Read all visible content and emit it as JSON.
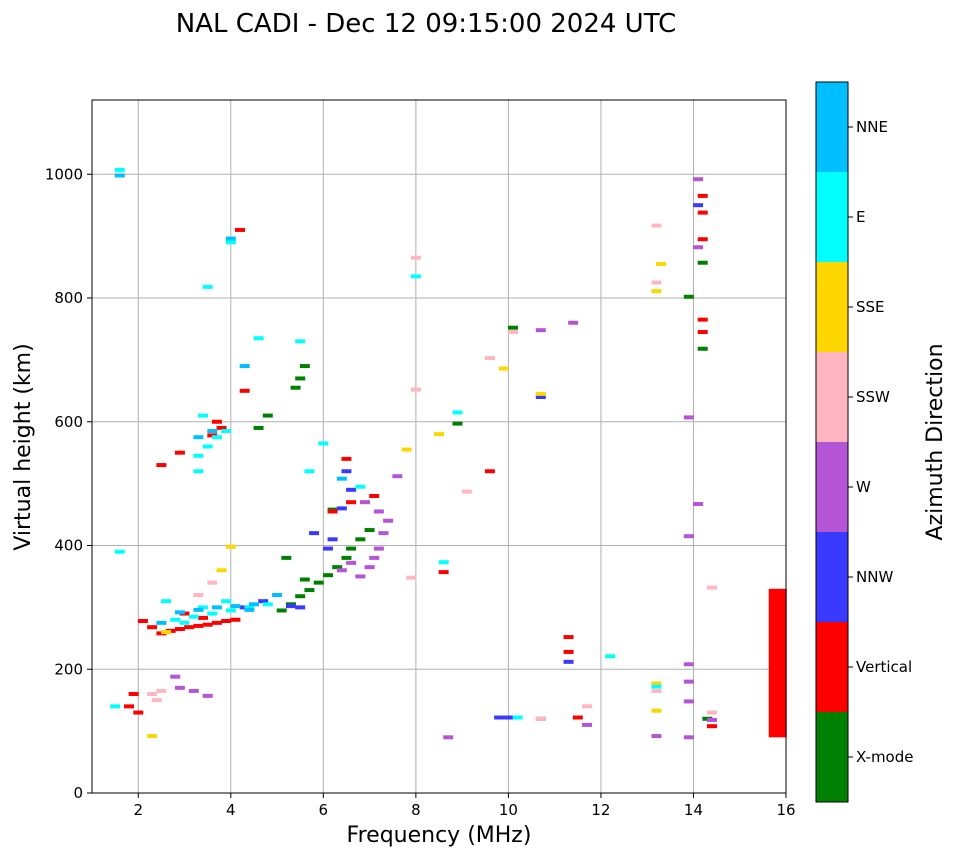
{
  "chart_data": {
    "type": "scatter",
    "title": "NAL CADI - Dec 12 09:15:00 2024 UTC",
    "xlabel": "Frequency (MHz)",
    "ylabel": "Virtual height (km)",
    "xlim": [
      1,
      16
    ],
    "ylim": [
      0,
      1120
    ],
    "xticks": [
      2,
      4,
      6,
      8,
      10,
      12,
      14,
      16
    ],
    "yticks": [
      0,
      200,
      400,
      600,
      800,
      1000
    ],
    "grid": true,
    "colorbar": {
      "label": "Azimuth Direction",
      "categories": [
        "X-mode",
        "Vertical",
        "NNW",
        "W",
        "SSW",
        "SSE",
        "E",
        "NNE"
      ],
      "colors": [
        "#008000",
        "#ff0000",
        "#3a3aff",
        "#b455d6",
        "#ffb6c1",
        "#ffd700",
        "#00ffff",
        "#00bfff"
      ]
    },
    "series": [
      {
        "name": "X-mode",
        "points": [
          [
            5.1,
            295
          ],
          [
            5.3,
            305
          ],
          [
            5.5,
            318
          ],
          [
            5.7,
            328
          ],
          [
            5.9,
            340
          ],
          [
            6.1,
            352
          ],
          [
            6.3,
            365
          ],
          [
            6.5,
            380
          ],
          [
            6.6,
            395
          ],
          [
            6.8,
            410
          ],
          [
            7.0,
            425
          ],
          [
            5.6,
            690
          ],
          [
            5.5,
            670
          ],
          [
            5.4,
            655
          ],
          [
            4.8,
            610
          ],
          [
            4.6,
            590
          ],
          [
            10.1,
            752
          ],
          [
            8.9,
            597
          ],
          [
            13.9,
            802
          ],
          [
            14.2,
            857
          ],
          [
            14.2,
            718
          ],
          [
            14.3,
            120
          ],
          [
            5.2,
            380
          ],
          [
            5.6,
            345
          ],
          [
            6.2,
            458
          ]
        ]
      },
      {
        "name": "Vertical",
        "points": [
          [
            2.5,
            258
          ],
          [
            2.7,
            262
          ],
          [
            2.9,
            265
          ],
          [
            3.1,
            268
          ],
          [
            3.3,
            270
          ],
          [
            3.5,
            272
          ],
          [
            3.7,
            275
          ],
          [
            3.9,
            278
          ],
          [
            4.1,
            280
          ],
          [
            2.1,
            278
          ],
          [
            2.3,
            268
          ],
          [
            3.0,
            290
          ],
          [
            3.4,
            283
          ],
          [
            3.8,
            590
          ],
          [
            3.6,
            578
          ],
          [
            3.7,
            600
          ],
          [
            2.5,
            530
          ],
          [
            2.9,
            550
          ],
          [
            4.2,
            910
          ],
          [
            4.3,
            650
          ],
          [
            6.5,
            540
          ],
          [
            6.2,
            455
          ],
          [
            14.2,
            965
          ],
          [
            14.2,
            938
          ],
          [
            14.2,
            895
          ],
          [
            14.2,
            765
          ],
          [
            14.2,
            745
          ],
          [
            14.4,
            108
          ],
          [
            11.3,
            252
          ],
          [
            11.3,
            228
          ],
          [
            11.5,
            122
          ],
          [
            9.6,
            520
          ],
          [
            8.6,
            357
          ],
          [
            1.8,
            140
          ],
          [
            1.9,
            160
          ],
          [
            2.0,
            130
          ],
          [
            6.6,
            470
          ],
          [
            7.1,
            480
          ]
        ]
      },
      {
        "name": "NNW",
        "points": [
          [
            6.6,
            490
          ],
          [
            6.4,
            460
          ],
          [
            5.8,
            420
          ],
          [
            6.2,
            410
          ],
          [
            4.7,
            310
          ],
          [
            4.3,
            300
          ],
          [
            9.8,
            122
          ],
          [
            10.0,
            122
          ],
          [
            11.3,
            212
          ],
          [
            14.1,
            950
          ],
          [
            10.7,
            640
          ],
          [
            6.5,
            520
          ],
          [
            6.1,
            395
          ],
          [
            5.5,
            300
          ],
          [
            5.3,
            302
          ]
        ]
      },
      {
        "name": "W",
        "points": [
          [
            6.8,
            350
          ],
          [
            7.0,
            365
          ],
          [
            7.1,
            380
          ],
          [
            7.2,
            395
          ],
          [
            7.3,
            420
          ],
          [
            7.4,
            440
          ],
          [
            6.9,
            470
          ],
          [
            7.2,
            455
          ],
          [
            6.4,
            360
          ],
          [
            6.6,
            372
          ],
          [
            7.6,
            512
          ],
          [
            8.7,
            90
          ],
          [
            14.1,
            992
          ],
          [
            14.1,
            882
          ],
          [
            13.9,
            607
          ],
          [
            14.1,
            467
          ],
          [
            13.9,
            415
          ],
          [
            13.9,
            208
          ],
          [
            13.9,
            180
          ],
          [
            13.9,
            148
          ],
          [
            13.9,
            90
          ],
          [
            13.2,
            92
          ],
          [
            14.4,
            118
          ],
          [
            11.7,
            110
          ],
          [
            10.7,
            748
          ],
          [
            11.4,
            760
          ],
          [
            10.7,
            120
          ],
          [
            2.9,
            170
          ],
          [
            3.2,
            165
          ],
          [
            3.5,
            157
          ],
          [
            2.8,
            188
          ]
        ]
      },
      {
        "name": "SSW",
        "points": [
          [
            2.3,
            160
          ],
          [
            2.5,
            165
          ],
          [
            2.4,
            150
          ],
          [
            13.2,
            917
          ],
          [
            13.2,
            825
          ],
          [
            14.4,
            332
          ],
          [
            14.4,
            130
          ],
          [
            13.2,
            165
          ],
          [
            8.0,
            865
          ],
          [
            8.0,
            652
          ],
          [
            7.9,
            348
          ],
          [
            9.1,
            487
          ],
          [
            10.1,
            745
          ],
          [
            10.7,
            120
          ],
          [
            9.6,
            703
          ],
          [
            11.7,
            140
          ],
          [
            3.6,
            340
          ],
          [
            3.3,
            320
          ],
          [
            15.8,
            325
          ],
          [
            15.8,
            290
          ],
          [
            15.8,
            260
          ],
          [
            15.8,
            235
          ]
        ]
      },
      {
        "name": "SSE",
        "points": [
          [
            13.3,
            855
          ],
          [
            13.2,
            811
          ],
          [
            13.2,
            177
          ],
          [
            13.2,
            133
          ],
          [
            9.9,
            686
          ],
          [
            8.5,
            580
          ],
          [
            7.8,
            555
          ],
          [
            10.7,
            645
          ],
          [
            3.8,
            360
          ],
          [
            4.0,
            398
          ],
          [
            2.3,
            92
          ],
          [
            2.6,
            260
          ]
        ]
      },
      {
        "name": "E",
        "points": [
          [
            2.8,
            280
          ],
          [
            3.2,
            285
          ],
          [
            3.6,
            290
          ],
          [
            4.0,
            295
          ],
          [
            4.4,
            300
          ],
          [
            4.8,
            305
          ],
          [
            3.4,
            300
          ],
          [
            3.0,
            275
          ],
          [
            3.9,
            310
          ],
          [
            3.3,
            545
          ],
          [
            3.5,
            560
          ],
          [
            3.7,
            575
          ],
          [
            3.9,
            585
          ],
          [
            3.4,
            610
          ],
          [
            3.3,
            520
          ],
          [
            4.0,
            890
          ],
          [
            3.5,
            818
          ],
          [
            8.0,
            835
          ],
          [
            8.9,
            615
          ],
          [
            8.6,
            373
          ],
          [
            10.2,
            122
          ],
          [
            12.2,
            221
          ],
          [
            13.2,
            172
          ],
          [
            1.6,
            1007
          ],
          [
            1.6,
            390
          ],
          [
            1.5,
            140
          ],
          [
            6.0,
            565
          ],
          [
            5.7,
            520
          ],
          [
            4.6,
            735
          ],
          [
            5.5,
            730
          ],
          [
            6.8,
            495
          ],
          [
            2.6,
            310
          ]
        ]
      },
      {
        "name": "NNE",
        "points": [
          [
            2.9,
            292
          ],
          [
            3.3,
            296
          ],
          [
            3.7,
            300
          ],
          [
            4.1,
            302
          ],
          [
            4.5,
            305
          ],
          [
            2.5,
            275
          ],
          [
            4.4,
            296
          ],
          [
            3.3,
            575
          ],
          [
            3.6,
            585
          ],
          [
            4.0,
            896
          ],
          [
            6.4,
            508
          ],
          [
            5.0,
            320
          ],
          [
            1.6,
            998
          ],
          [
            4.3,
            690
          ]
        ]
      },
      {
        "name": "Vertical-column",
        "points": [
          [
            15.8,
            90
          ],
          [
            15.8,
            330
          ]
        ]
      }
    ]
  }
}
